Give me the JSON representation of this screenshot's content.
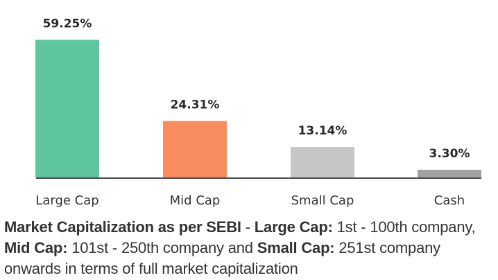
{
  "chart_data": {
    "type": "bar",
    "title": "",
    "xlabel": "",
    "ylabel": "",
    "ylim": [
      0,
      60
    ],
    "grid": false,
    "categories": [
      "Large Cap",
      "Mid Cap",
      "Small Cap",
      "Cash"
    ],
    "values": [
      59.25,
      24.31,
      13.14,
      3.3
    ],
    "value_labels": [
      "59.25%",
      "24.31%",
      "13.14%",
      "3.30%"
    ],
    "colors": [
      "#5fc59f",
      "#f98c5f",
      "#c6c6c6",
      "#a2a2a2"
    ],
    "baseline_color": "#4a4a4a"
  },
  "footnote": {
    "segments": [
      {
        "text": "Market Capitalization as per SEBI",
        "bold": true
      },
      {
        "text": " - ",
        "bold": false
      },
      {
        "text": "Large Cap:",
        "bold": true
      },
      {
        "text": " 1st - 100th company, ",
        "bold": false
      },
      {
        "text": "Mid Cap:",
        "bold": true
      },
      {
        "text": " 101st - 250th company and ",
        "bold": false
      },
      {
        "text": "Small Cap:",
        "bold": true
      },
      {
        "text": " 251st company onwards in terms of full market capitalization",
        "bold": false
      }
    ]
  }
}
